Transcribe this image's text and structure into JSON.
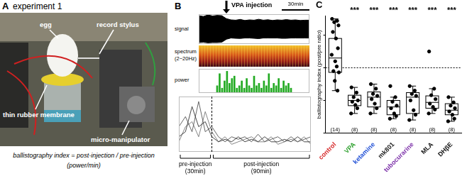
{
  "panel_a": {
    "label": "A",
    "title": "experiment 1",
    "annotations": [
      "egg",
      "record stylus",
      "thin rubber membrane",
      "micro-manipulator"
    ],
    "formula": "ballistography index = post-injection / pre-injection",
    "formula_unit": "(power/min)"
  },
  "panel_b": {
    "label": "B",
    "injection_label": "VPA injection",
    "injection": 30,
    "scale_bar": {
      "value": 30,
      "label": "30min"
    },
    "spectrum_label": "spectrum",
    "spectrum_band": "(2~20Hz)",
    "pre_label": "pre-injection",
    "pre_duration": "(30min)",
    "post_label": "post-injection",
    "post_duration": "(90min)"
  },
  "panel_c": {
    "label": "C"
  },
  "chart_data": [
    {
      "type": "area",
      "title": "signal",
      "x": [
        0,
        5,
        10,
        15,
        20,
        25,
        30,
        35,
        40,
        45,
        50,
        55,
        60,
        65,
        70,
        75,
        80,
        85,
        90,
        95,
        100,
        105,
        110,
        115,
        120
      ],
      "series": [
        {
          "color": "#000000",
          "values": [
            0.9,
            0.85,
            0.95,
            0.88,
            0.92,
            0.9,
            0.7,
            0.62,
            0.6,
            0.65,
            0.58,
            0.62,
            0.6,
            0.66,
            0.6,
            0.63,
            0.58,
            0.62,
            0.6,
            0.64,
            0.6,
            0.62,
            0.58,
            0.6,
            0.6
          ]
        },
        {
          "color": "#000000",
          "values": [
            -0.9,
            -0.88,
            -0.92,
            -0.9,
            -0.9,
            -0.88,
            -0.68,
            -0.6,
            -0.62,
            -0.63,
            -0.6,
            -0.6,
            -0.62,
            -0.64,
            -0.6,
            -0.6,
            -0.6,
            -0.6,
            -0.62,
            -0.62,
            -0.6,
            -0.6,
            -0.6,
            -0.6,
            -0.6
          ]
        }
      ],
      "xlim": [
        0,
        120
      ],
      "ylim": [
        -1,
        1
      ],
      "tick_labels": false
    },
    {
      "type": "bar",
      "title": "power",
      "x": [
        0,
        4,
        8,
        12,
        16,
        20,
        24,
        28,
        32,
        36,
        40,
        44,
        48,
        52,
        56,
        60,
        64,
        68,
        72,
        76,
        80,
        84,
        88,
        92,
        96,
        100,
        104,
        108,
        112,
        116,
        120
      ],
      "values": [
        0.3,
        0.8,
        0.2,
        0.5,
        0.9,
        0.4,
        0.6,
        0.7,
        0.2,
        0.3,
        0.5,
        0.2,
        0.6,
        0.3,
        0.2,
        0.7,
        0.3,
        0.4,
        0.2,
        0.5,
        0.3,
        0.8,
        0.2,
        0.4,
        0.3,
        0.6,
        0.2,
        0.5,
        0.3,
        0.4,
        0.2
      ],
      "color": "#22aa22",
      "xlim": [
        0,
        120
      ],
      "ylim": [
        0,
        1
      ],
      "tick_labels": false
    },
    {
      "type": "line",
      "x": [
        0,
        6,
        12,
        18,
        24,
        30,
        36,
        42,
        48,
        54,
        60,
        66,
        72,
        78,
        84,
        90,
        96,
        102,
        108,
        114,
        120
      ],
      "series": [
        {
          "color": "#333333",
          "values": [
            0.3,
            0.4,
            0.9,
            0.5,
            0.6,
            0.3,
            0.2,
            0.25,
            0.2,
            0.3,
            0.2,
            0.25,
            0.2,
            0.3,
            0.2,
            0.2,
            0.25,
            0.2,
            0.3,
            0.2,
            0.2
          ]
        },
        {
          "color": "#555555",
          "values": [
            0.5,
            0.7,
            0.4,
            1.0,
            0.4,
            0.5,
            0.3,
            0.2,
            0.3,
            0.25,
            0.3,
            0.2,
            0.35,
            0.2,
            0.25,
            0.3,
            0.2,
            0.3,
            0.2,
            0.25,
            0.3
          ]
        },
        {
          "color": "#777777",
          "values": [
            0.2,
            0.5,
            0.6,
            0.3,
            0.8,
            0.4,
            0.2,
            0.3,
            0.15,
            0.2,
            0.25,
            0.3,
            0.2,
            0.2,
            0.3,
            0.15,
            0.2,
            0.25,
            0.2,
            0.3,
            0.15
          ]
        }
      ],
      "xlim": [
        0,
        120
      ],
      "ylim": [
        0,
        1.1
      ],
      "tick_labels": false
    },
    {
      "type": "box",
      "y_label": "ballistography index (post/pre ratio)",
      "categories": [
        "control",
        "VPA",
        "ketamine",
        "mk801",
        "tubocurarine",
        "MLA",
        "DHβE"
      ],
      "colors": [
        "#d62728",
        "#2ca02c",
        "#1f4fd6",
        "#222222",
        "#7b2fa8",
        "#111111",
        "#111111"
      ],
      "n_labels": [
        "(14)",
        "(8)",
        "(8)",
        "(8)",
        "(8)",
        "(8)",
        "(8)"
      ],
      "significance": [
        null,
        "***",
        "***",
        "***",
        "***",
        "***",
        "***"
      ],
      "whisker_low": [
        0.65,
        0.3,
        0.3,
        0.22,
        0.2,
        0.3,
        0.18
      ],
      "q1": [
        0.93,
        0.42,
        0.4,
        0.28,
        0.3,
        0.38,
        0.28
      ],
      "median": [
        1.15,
        0.5,
        0.55,
        0.4,
        0.55,
        0.47,
        0.35
      ],
      "q3": [
        1.45,
        0.58,
        0.63,
        0.5,
        0.62,
        0.57,
        0.45
      ],
      "whisker_high": [
        1.75,
        0.7,
        0.75,
        0.55,
        0.72,
        0.68,
        0.55
      ],
      "points": [
        [
          1.75,
          1.72,
          1.7,
          1.65,
          1.55,
          1.45,
          1.3,
          1.2,
          1.1,
          1.02,
          0.95,
          0.93,
          0.8,
          0.65
        ],
        [
          0.7,
          0.62,
          0.55,
          0.5,
          0.48,
          0.43,
          0.38,
          0.3
        ],
        [
          0.75,
          0.68,
          0.6,
          0.57,
          0.52,
          0.45,
          0.38,
          0.3
        ],
        [
          0.72,
          0.55,
          0.48,
          0.42,
          0.38,
          0.3,
          0.26,
          0.22
        ],
        [
          0.72,
          0.65,
          0.6,
          0.57,
          0.5,
          0.35,
          0.28,
          0.2
        ],
        [
          1.25,
          0.68,
          0.58,
          0.52,
          0.45,
          0.4,
          0.36,
          0.3
        ],
        [
          0.55,
          0.47,
          0.42,
          0.38,
          0.33,
          0.28,
          0.22,
          0.18
        ]
      ],
      "reference": 1,
      "ylim": [
        0,
        1.8
      ],
      "yticks": [
        0,
        0.5,
        1,
        1.5
      ],
      "tick_labels": "x",
      "grid": false
    }
  ]
}
